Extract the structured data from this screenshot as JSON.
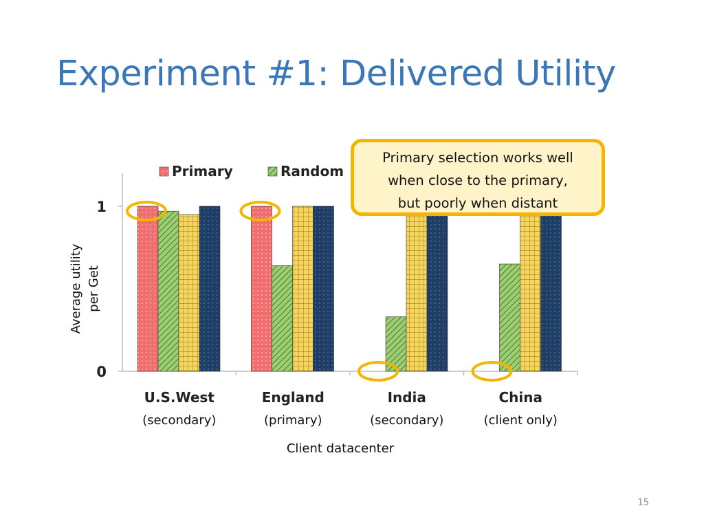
{
  "slide": {
    "title": "Experiment #1: Delivered Utility",
    "page_number": "15"
  },
  "callout": {
    "lines": [
      "Primary selection works well",
      "when close to the primary,",
      "but poorly when distant"
    ]
  },
  "chart_data": {
    "type": "bar",
    "categories": [
      "U.S.West",
      "England",
      "India",
      "China"
    ],
    "category_sublabels": [
      "(secondary)",
      "(primary)",
      "(secondary)",
      "(client only)"
    ],
    "series": [
      {
        "name": "Primary",
        "values": [
          1.0,
          1.0,
          0,
          0
        ],
        "color": "#f26d6d",
        "pattern": "dots"
      },
      {
        "name": "Random",
        "values": [
          0.97,
          0.64,
          0.33,
          0.65
        ],
        "color": "#8fc46a",
        "pattern": "diagonal"
      },
      {
        "name": "",
        "values": [
          0.95,
          1.0,
          1.0,
          1.0
        ],
        "color": "#f7d55c",
        "pattern": "grid"
      },
      {
        "name": "",
        "values": [
          1.0,
          1.0,
          1.0,
          1.0
        ],
        "color": "#1f3e66",
        "pattern": "dots-light"
      }
    ],
    "xlabel": "Client datacenter",
    "ylabel_lines": [
      "Average utility",
      "per Get"
    ],
    "ylim": [
      0,
      1
    ],
    "yticks": [
      "0",
      "1"
    ],
    "highlight_color": "#f2b600",
    "legend_position": "top"
  }
}
